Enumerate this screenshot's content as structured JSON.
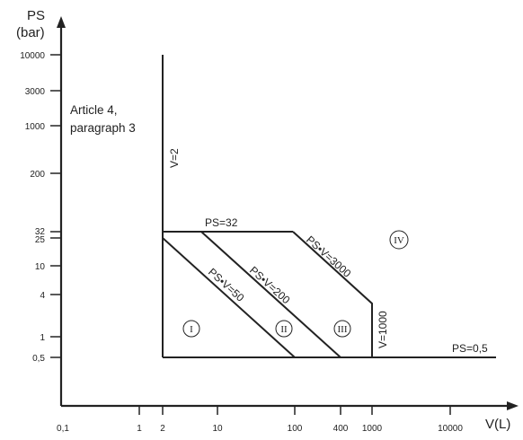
{
  "y_axis_title": [
    "PS",
    "(bar)"
  ],
  "x_axis_title": "V(L)",
  "y_ticks": [
    "10000",
    "3000",
    "1000",
    "200",
    "32",
    "25",
    "10",
    "4",
    "1",
    "0,5"
  ],
  "x_ticks": [
    "0,1",
    "1",
    "2",
    "10",
    "100",
    "400",
    "1000",
    "10000"
  ],
  "note": [
    "Article 4,",
    "paragraph 3"
  ],
  "line_labels": {
    "v2": "V=2",
    "ps32": "PS=32",
    "psv50": "PS•V=50",
    "psv200": "PS•V=200",
    "psv3000": "PS•V=3000",
    "v1000": "V=1000",
    "ps05": "PS=0,5"
  },
  "categories": [
    "I",
    "II",
    "III",
    "IV"
  ]
}
